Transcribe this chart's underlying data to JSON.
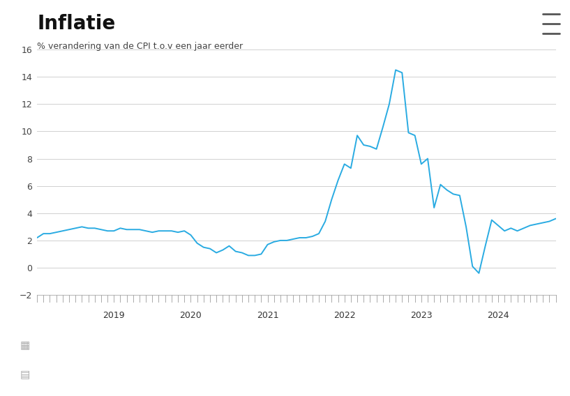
{
  "title": "Inflatie",
  "subtitle": "% verandering van de CPI t.o.v een jaar eerder",
  "line_color": "#29abe2",
  "background_color": "#ffffff",
  "footer_color": "#ebebeb",
  "ylim": [
    -2,
    16
  ],
  "yticks": [
    -2,
    0,
    2,
    4,
    6,
    8,
    10,
    12,
    14,
    16
  ],
  "grid_color": "#d0d0d0",
  "values": [
    2.2,
    2.5,
    2.5,
    2.6,
    2.7,
    2.8,
    2.9,
    3.0,
    2.9,
    2.9,
    2.8,
    2.7,
    2.7,
    2.9,
    2.8,
    2.8,
    2.8,
    2.7,
    2.6,
    2.7,
    2.7,
    2.7,
    2.6,
    2.7,
    2.4,
    1.8,
    1.5,
    1.4,
    1.1,
    1.3,
    1.6,
    1.2,
    1.1,
    0.9,
    0.9,
    1.0,
    1.7,
    1.9,
    2.0,
    2.0,
    2.1,
    2.2,
    2.2,
    2.3,
    2.5,
    3.4,
    5.0,
    6.4,
    7.6,
    7.3,
    9.7,
    9.0,
    8.9,
    8.7,
    10.3,
    12.0,
    14.5,
    14.3,
    9.9,
    9.7,
    7.6,
    8.0,
    4.4,
    6.1,
    5.7,
    5.4,
    5.3,
    3.0,
    0.1,
    -0.4,
    1.6,
    3.5,
    3.1,
    2.7,
    2.9,
    2.7,
    2.9,
    3.1,
    3.2,
    3.3,
    3.4,
    3.6
  ],
  "year_labels": [
    "2019",
    "2020",
    "2021",
    "2022",
    "2023",
    "2024"
  ],
  "year_positions": [
    12,
    24,
    36,
    48,
    60,
    72
  ],
  "n_months": 82,
  "title_fontsize": 20,
  "subtitle_fontsize": 9,
  "tick_fontsize": 9,
  "year_fontsize": 9
}
